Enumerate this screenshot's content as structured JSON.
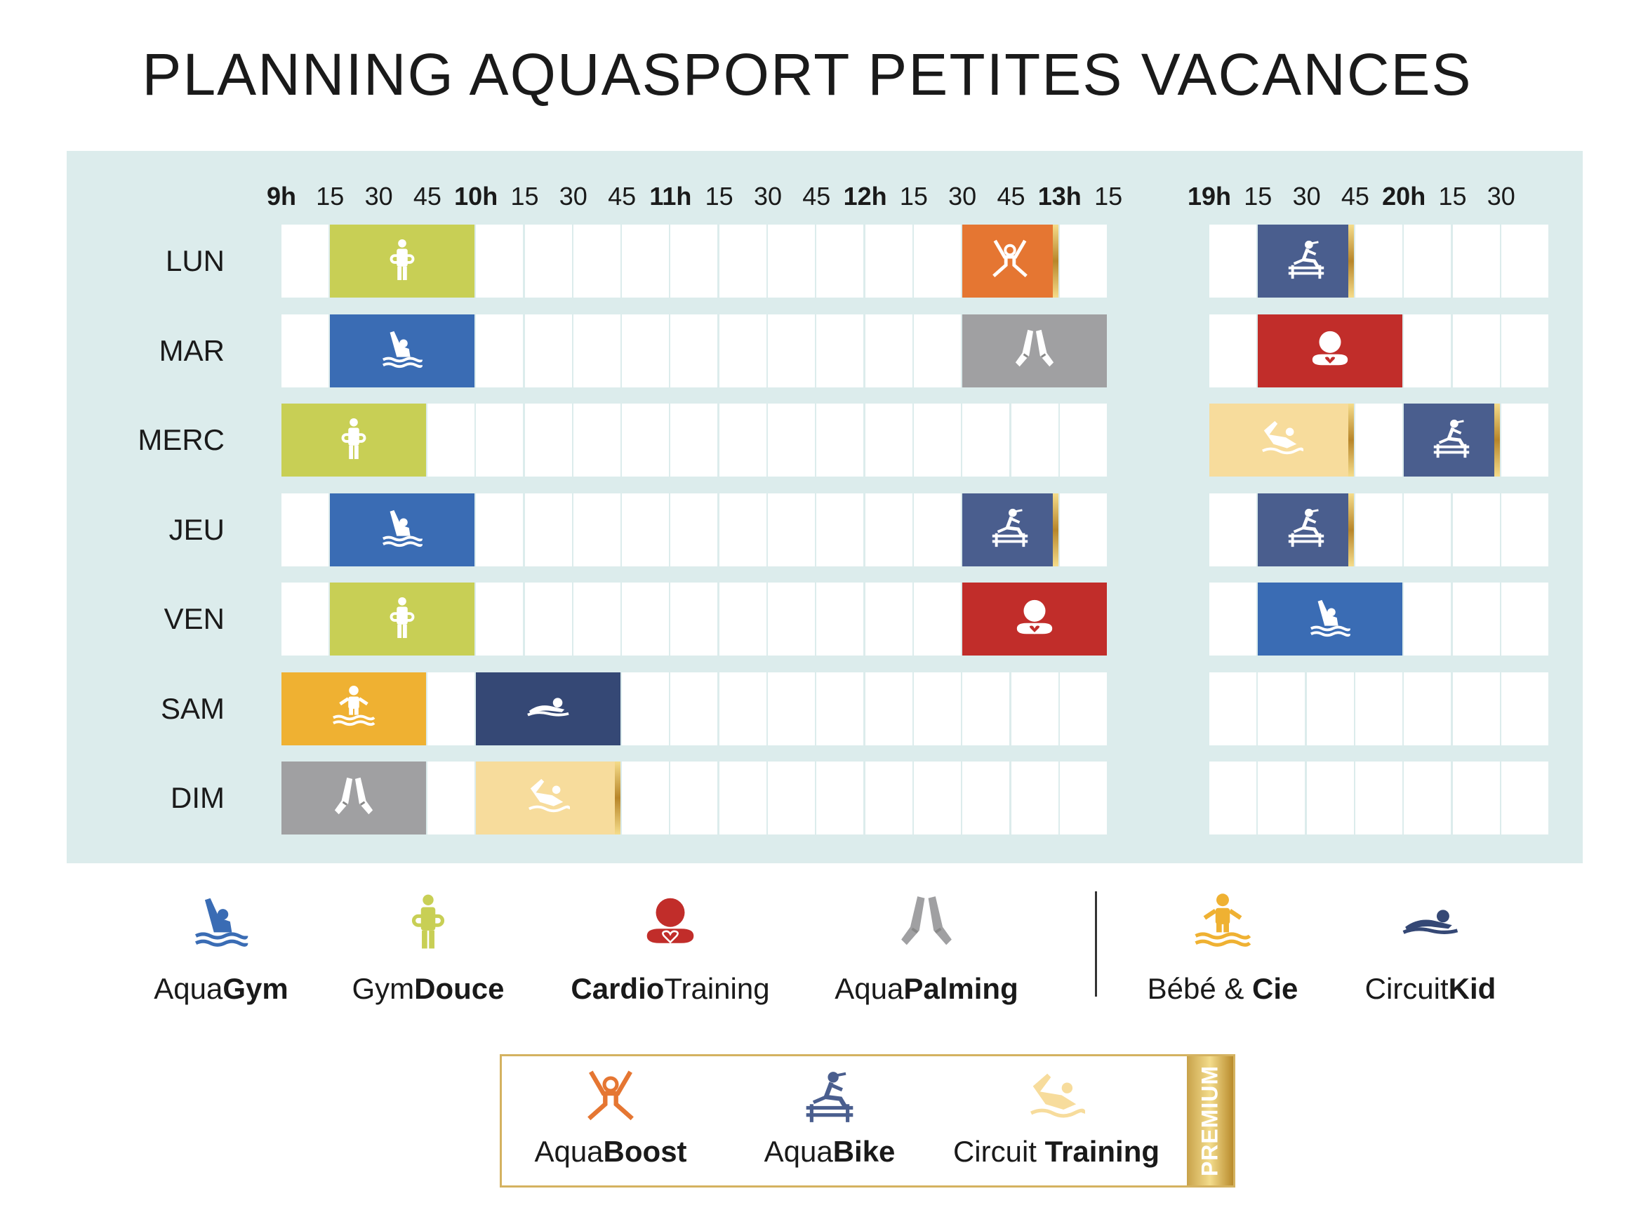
{
  "title": "PLANNING AQUASPORT PETITES VACANCES",
  "colors": {
    "aquagym": "#3a6cb4",
    "gymdouce": "#c8cf55",
    "cardio": "#c12d2a",
    "palming": "#a0a0a2",
    "bebe": "#efb132",
    "circuitkid": "#354875",
    "boost": "#e57632",
    "bike": "#4a5e8e",
    "circuit_training": "#f7dc9c"
  },
  "time_labels_left": [
    "9h",
    "15",
    "30",
    "45",
    "10h",
    "15",
    "30",
    "45",
    "11h",
    "15",
    "30",
    "45",
    "12h",
    "15",
    "30",
    "45",
    "13h",
    "15"
  ],
  "time_labels_right": [
    "19h",
    "15",
    "30",
    "45",
    "20h",
    "15",
    "30"
  ],
  "days": [
    {
      "label": "LUN",
      "activities": [
        {
          "type": "gymdouce",
          "part": "left",
          "start": 1,
          "end": 4
        },
        {
          "type": "boost",
          "part": "left",
          "start": 14,
          "end": 16
        },
        {
          "type": "bike",
          "part": "right",
          "start": 1,
          "end": 3
        }
      ]
    },
    {
      "label": "MAR",
      "activities": [
        {
          "type": "aquagym",
          "part": "left",
          "start": 1,
          "end": 4
        },
        {
          "type": "palming",
          "part": "left",
          "start": 14,
          "end": 17
        },
        {
          "type": "cardio",
          "part": "right",
          "start": 1,
          "end": 4
        }
      ]
    },
    {
      "label": "MERC",
      "activities": [
        {
          "type": "gymdouce",
          "part": "left",
          "start": 0,
          "end": 3
        },
        {
          "type": "circuit_training",
          "part": "right",
          "start": 0,
          "end": 3
        },
        {
          "type": "bike",
          "part": "right",
          "start": 4,
          "end": 6
        }
      ]
    },
    {
      "label": "JEU",
      "activities": [
        {
          "type": "aquagym",
          "part": "left",
          "start": 1,
          "end": 4
        },
        {
          "type": "bike",
          "part": "left",
          "start": 14,
          "end": 16
        },
        {
          "type": "bike",
          "part": "right",
          "start": 1,
          "end": 3
        }
      ]
    },
    {
      "label": "VEN",
      "activities": [
        {
          "type": "gymdouce",
          "part": "left",
          "start": 1,
          "end": 4
        },
        {
          "type": "cardio",
          "part": "left",
          "start": 14,
          "end": 17
        },
        {
          "type": "aquagym",
          "part": "right",
          "start": 1,
          "end": 4
        }
      ]
    },
    {
      "label": "SAM",
      "activities": [
        {
          "type": "bebe",
          "part": "left",
          "start": 0,
          "end": 3
        },
        {
          "type": "circuitkid",
          "part": "left",
          "start": 4,
          "end": 7
        }
      ]
    },
    {
      "label": "DIM",
      "activities": [
        {
          "type": "palming",
          "part": "left",
          "start": 0,
          "end": 3
        },
        {
          "type": "circuit_training",
          "part": "left",
          "start": 4,
          "end": 7
        }
      ]
    }
  ],
  "legend": [
    {
      "type": "aquagym",
      "light": "Aqua",
      "bold": "Gym"
    },
    {
      "type": "gymdouce",
      "light": "Gym",
      "bold": "Douce"
    },
    {
      "type": "cardio",
      "bold": "Cardio",
      "light": "Training"
    },
    {
      "type": "palming",
      "light": "Aqua",
      "bold": "Palming"
    },
    {
      "type": "bebe",
      "light": "Bébé & ",
      "bold": "Cie"
    },
    {
      "type": "circuitkid",
      "light": "Circuit",
      "bold": "Kid"
    }
  ],
  "premium_legend": [
    {
      "type": "boost",
      "light": "Aqua",
      "bold": "Boost"
    },
    {
      "type": "bike",
      "light": "Aqua",
      "bold": "Bike"
    },
    {
      "type": "circuit_training",
      "light": "Circuit ",
      "bold": "Training"
    }
  ],
  "premium_tag": "PREMIUM"
}
